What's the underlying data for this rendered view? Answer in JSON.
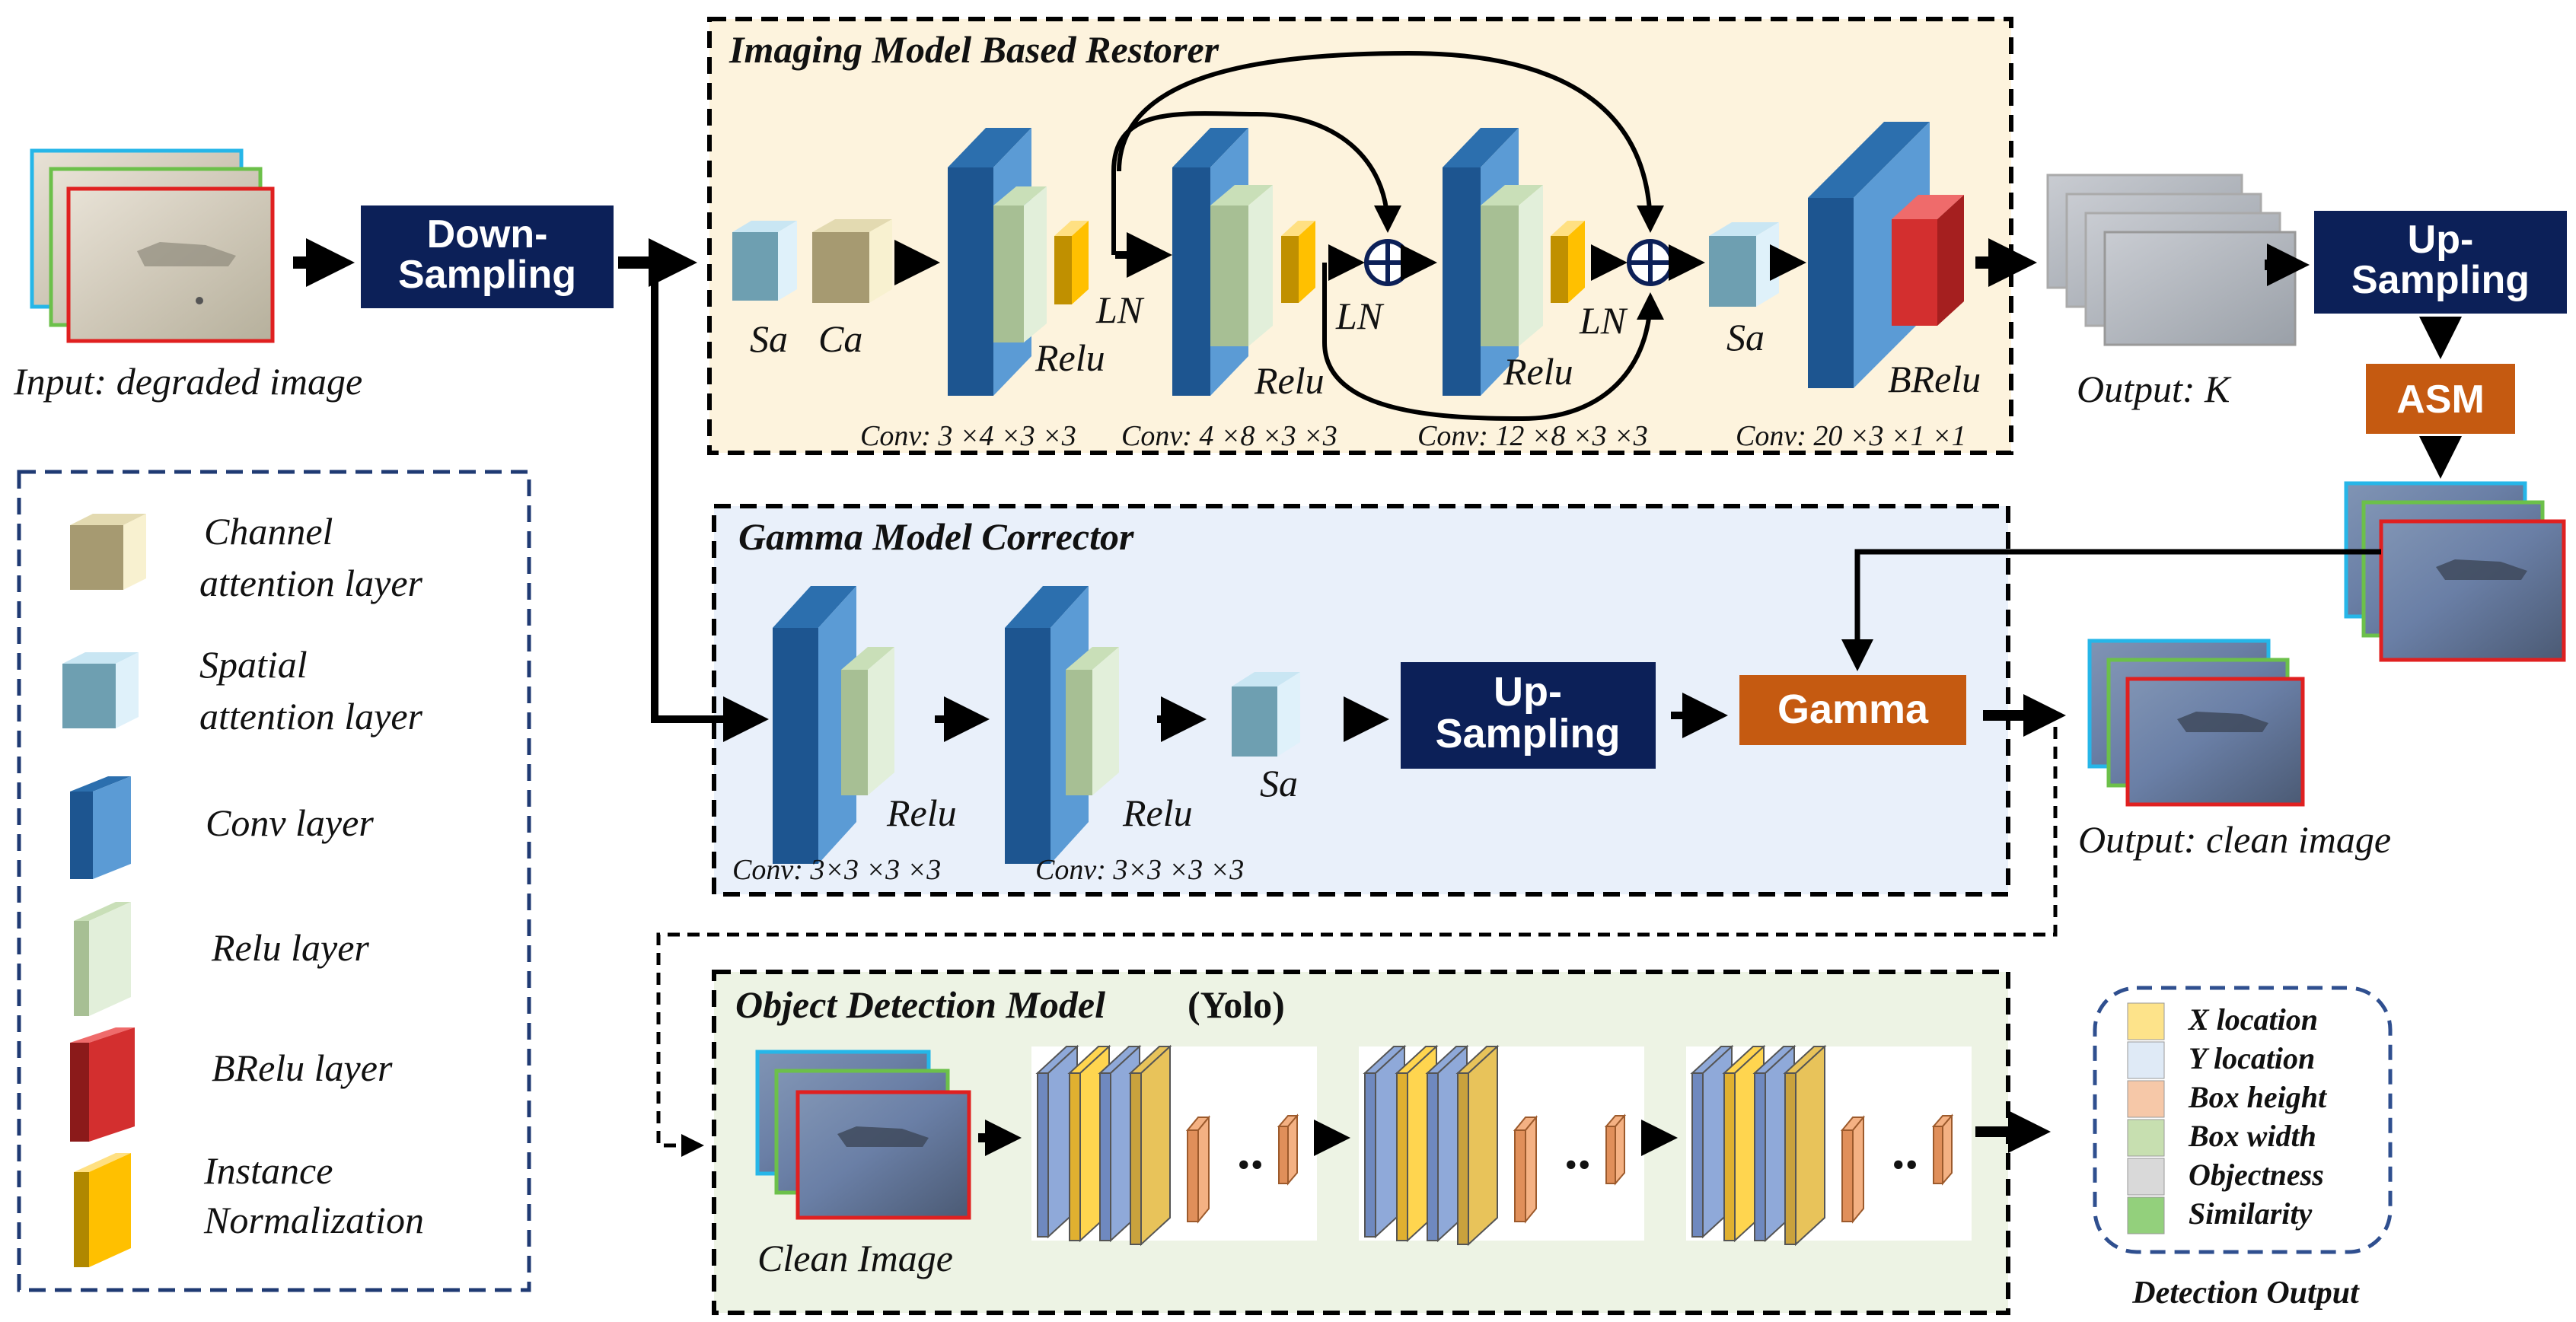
{
  "panels": {
    "restorer_title": "Imaging Model Based Restorer",
    "gamma_title": "Gamma Model Corrector",
    "detector_title": "Object Detection Model",
    "detector_title_suffix": "(Yolo)"
  },
  "buttons": {
    "down_sampling": [
      "Down-",
      "Sampling"
    ],
    "up_sampling_top": [
      "Up-",
      "Sampling"
    ],
    "up_sampling_mid": [
      "Up-",
      "Sampling"
    ],
    "asm": "ASM",
    "gamma": "Gamma"
  },
  "images": {
    "input_caption": "Input: degraded image",
    "output_k_caption": "Output: K",
    "clean_output_caption": "Output: clean image",
    "clean_image_caption": "Clean Image"
  },
  "restorer_labels": {
    "sa1": "Sa",
    "ca": "Ca",
    "ln1": "LN",
    "relu1": "Relu",
    "ln2": "LN",
    "relu2": "Relu",
    "ln3": "LN",
    "relu3": "Relu",
    "sa2": "Sa",
    "brelu": "BRelu",
    "conv1": "Conv: 3 ×4 ×3 ×3",
    "conv2": "Conv: 4 ×8 ×3 ×3",
    "conv3": "Conv: 12 ×8 ×3 ×3",
    "conv4": "Conv: 20 ×3 ×1 ×1"
  },
  "gamma_labels": {
    "relu1": "Relu",
    "relu2": "Relu",
    "sa": "Sa",
    "conv1": "Conv: 3×3 ×3 ×3",
    "conv2": "Conv: 3×3 ×3 ×3"
  },
  "legend": [
    {
      "label": [
        "Channel",
        "attention layer"
      ],
      "icon": "channel-attention-cube"
    },
    {
      "label": [
        "Spatial",
        "attention layer"
      ],
      "icon": "spatial-attention-cube"
    },
    {
      "label": [
        "Conv layer"
      ],
      "icon": "conv-block"
    },
    {
      "label": [
        "Relu layer"
      ],
      "icon": "relu-block"
    },
    {
      "label": [
        "BRelu layer"
      ],
      "icon": "brelu-block"
    },
    {
      "label": [
        "Instance",
        "Normalization"
      ],
      "icon": "instance-norm-block"
    }
  ],
  "detection_output": {
    "title": "Detection Output",
    "items": [
      {
        "label": "X location",
        "color": "#fde38a"
      },
      {
        "label": "Y location",
        "color": "#dfeaf6"
      },
      {
        "label": "Box height",
        "color": "#f6c8a8"
      },
      {
        "label": "Box width",
        "color": "#c7dfb0"
      },
      {
        "label": "Objectness",
        "color": "#d9d9d9"
      },
      {
        "label": "Similarity",
        "color": "#93d07c"
      }
    ]
  },
  "yolo_dots": [
    "..",
    "..",
    ".."
  ],
  "colors": {
    "navy": "#0c2058",
    "orange": "#c55a11",
    "restorer_bg": "#fdf3dd",
    "gamma_bg": "#e9f0fa",
    "detector_bg": "#edf3e4",
    "conv_blue": "#5b9bd5",
    "relu_green": "#e2efda",
    "norm_yellow": "#ffc000",
    "brelu_red": "#d32f2f"
  }
}
